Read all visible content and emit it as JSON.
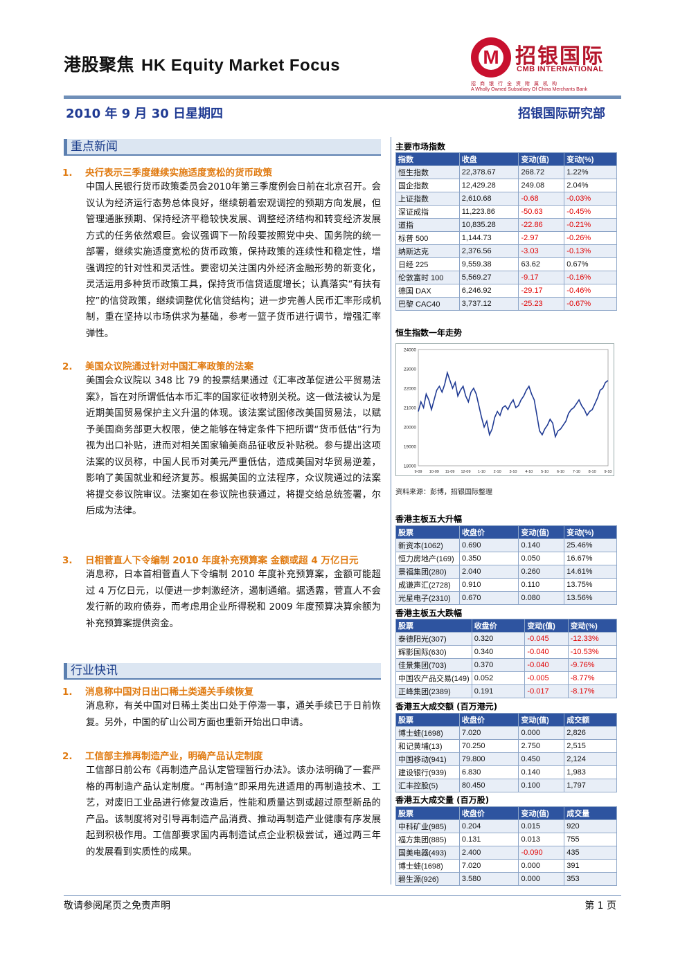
{
  "header": {
    "title_cn": "港股聚焦",
    "title_en": "HK Equity Market Focus",
    "date": "2010 年 9 月 30 日星期四",
    "dept": "招银国际研究部"
  },
  "logo": {
    "mark": "M",
    "cn": "招银国际",
    "en": "CMB INTERNATIONAL",
    "sub1": "招商银行全资附属机构",
    "sub2": "A Wholly Owned Subsidiary Of China Merchants Bank"
  },
  "sections": {
    "news_head": "重点新闻",
    "industry_head": "行业快讯"
  },
  "news": [
    {
      "num": "1.",
      "title": "央行表示三季度继续实施适度宽松的货币政策",
      "body": "中国人民银行货币政策委员会2010年第三季度例会日前在北京召开。会议认为经济运行态势总体良好，继续朝着宏观调控的预期方向发展，但管理通胀预期、保持经济平稳较快发展、调整经济结构和转变经济发展方式的任务依然艰巨。会议强调下一阶段要按照党中央、国务院的统一部署，继续实施适度宽松的货币政策，保持政策的连续性和稳定性，增强调控的针对性和灵活性。要密切关注国内外经济金融形势的新变化，灵活运用多种货币政策工具，保持货币信贷适度增长；认真落实“有扶有控”的信贷政策，继续调整优化信贷结构；进一步完善人民币汇率形成机制，重在坚持以市场供求为基础，参考一篮子货币进行调节，增强汇率弹性。"
    },
    {
      "num": "2.",
      "title": "美国众议院通过针对中国汇率政策的法案",
      "body": "美国会众议院以 348 比 79 的投票结果通过《汇率改革促进公平贸易法案》，旨在对所谓低估本币汇率的国家征收特别关税。这一做法被认为是近期美国贸易保护主义升温的体现。该法案试图修改美国贸易法，以赋予美国商务部更大权限，使之能够在特定条件下把所谓“货币低估”行为视为出口补贴，进而对相关国家输美商品征收反补贴税。参与提出这项法案的议员称，中国人民币对美元严重低估，造成美国对华贸易逆差，影响了美国就业和经济复苏。根据美国的立法程序，众议院通过的法案将提交参议院审议。法案如在参议院也获通过，将提交给总统签署，尔后成为法律。"
    },
    {
      "num": "3.",
      "title": "日相菅直人下令编制 2010 年度补充预算案  金额或超 4 万亿日元",
      "body": "消息称，日本首相菅直人下令编制 2010 年度补充预算案，金额可能超过 4 万亿日元，以便进一步刺激经济，遏制通缩。据透露，菅直人不会发行新的政府债券，而考虑用企业所得税和 2009 年度预算决算余额为补充预算案提供资金。"
    }
  ],
  "industry": [
    {
      "num": "1.",
      "title": "消息称中国对日出口稀土类通关手续恢复",
      "body": "消息称，有关中国对日稀土类出口处于停滞一事，通关手续已于日前恢复。另外，中国的矿山公司方面也重新开始出口申请。"
    },
    {
      "num": "2.",
      "title": "工信部主推再制造产业，明确产品认定制度",
      "body": "工信部日前公布《再制造产品认定管理暂行办法》。该办法明确了一套严格的再制造产品认定制度。“再制造”即采用先进适用的再制造技术、工艺，对废旧工业品进行修复改造后，性能和质量达到或超过原型新品的产品。该制度将对引导再制造产品消费、推动再制造产业健康有序发展起到积极作用。工信部要求国内再制造试点企业积极尝试，通过两三年的发展看到实质性的成果。"
    }
  ],
  "indices": {
    "label": "主要市场指数",
    "headers": [
      "指数",
      "收盘",
      "变动(值)",
      "变动(%)"
    ],
    "rows": [
      [
        "恒生指数",
        "22,378.67",
        "268.72",
        "1.22%"
      ],
      [
        "国企指数",
        "12,429.28",
        "249.08",
        "2.04%"
      ],
      [
        "上证指数",
        "2,610.68",
        "-0.68",
        "-0.03%"
      ],
      [
        "深证成指",
        "11,223.86",
        "-50.63",
        "-0.45%"
      ],
      [
        "道指",
        "10,835.28",
        "-22.86",
        "-0.21%"
      ],
      [
        "标普 500",
        "1,144.73",
        "-2.97",
        "-0.26%"
      ],
      [
        "纳斯达克",
        "2,376.56",
        "-3.03",
        "-0.13%"
      ],
      [
        "日经 225",
        "9,559.38",
        "63.62",
        "0.67%"
      ],
      [
        "伦敦富时 100",
        "5,569.27",
        "-9.17",
        "-0.16%"
      ],
      [
        "德国 DAX",
        "6,246.92",
        "-29.17",
        "-0.46%"
      ],
      [
        "巴黎 CAC40",
        "3,737.12",
        "-25.23",
        "-0.67%"
      ]
    ]
  },
  "chart_label": "恒生指数一年走势",
  "chart_source": "资料来源：彭博，招银国际整理",
  "chart_data": {
    "type": "line",
    "title": "",
    "xlabel": "",
    "ylabel": "",
    "ylim": [
      18000,
      24000
    ],
    "yticks": [
      18000,
      19000,
      20000,
      21000,
      22000,
      23000,
      24000
    ],
    "xticks": [
      "9-09",
      "10-09",
      "11-09",
      "12-09",
      "1-10",
      "2-10",
      "3-10",
      "4-10",
      "5-10",
      "6-10",
      "7-10",
      "8-10",
      "9-10"
    ],
    "series": [
      {
        "values": [
          20800,
          21300,
          21000,
          21700,
          21400,
          20900,
          21400,
          21900,
          22100,
          21800,
          22200,
          22800,
          22400,
          22000,
          22300,
          21600,
          21900,
          22100,
          21600,
          21300,
          21800,
          22000,
          21700,
          21100,
          20500,
          20000,
          20300,
          19600,
          19900,
          20500,
          20800,
          20600,
          21000,
          21100,
          20900,
          21200,
          21400,
          21000,
          21100,
          21400,
          21600,
          21900,
          22100,
          21700,
          21400,
          20600,
          19800,
          19600,
          19900,
          20100,
          20400,
          20200,
          19500,
          19800,
          19900,
          20100,
          20300,
          20700,
          20900,
          21000,
          21200,
          21400,
          21100,
          20900,
          20600,
          20800,
          20900,
          21200,
          21500,
          21900,
          22000,
          22300,
          22400
        ]
      }
    ]
  },
  "gainers": {
    "label": "香港主板五大升幅",
    "headers": [
      "股票",
      "收盘价",
      "变动(值)",
      "变动(%)"
    ],
    "rows": [
      [
        "新资本(1062)",
        "0.690",
        "0.140",
        "25.46%"
      ],
      [
        "恒力房地产(169)",
        "0.350",
        "0.050",
        "16.67%"
      ],
      [
        "景福集团(280)",
        "2.040",
        "0.260",
        "14.61%"
      ],
      [
        "成谦声汇(2728)",
        "0.910",
        "0.110",
        "13.75%"
      ],
      [
        "光星电子(2310)",
        "0.670",
        "0.080",
        "13.56%"
      ]
    ]
  },
  "losers": {
    "label": "香港主板五大跌幅",
    "headers": [
      "股票",
      "收盘价",
      "变动(值)",
      "变动(%)"
    ],
    "rows": [
      [
        "泰德阳光(307)",
        "0.320",
        "-0.045",
        "-12.33%"
      ],
      [
        "辉影国际(630)",
        "0.340",
        "-0.040",
        "-10.53%"
      ],
      [
        "佳景集团(703)",
        "0.370",
        "-0.040",
        "-9.76%"
      ],
      [
        "中国农产品交易(149)",
        "0.052",
        "-0.005",
        "-8.77%"
      ],
      [
        "正峰集团(2389)",
        "0.191",
        "-0.017",
        "-8.17%"
      ]
    ]
  },
  "turnover": {
    "label": "香港五大成交额 (百万港元)",
    "headers": [
      "股票",
      "收盘价",
      "变动(值)",
      "成交额"
    ],
    "rows": [
      [
        "博士蛙(1698)",
        "7.020",
        "0.000",
        "2,826"
      ],
      [
        "和记黄埔(13)",
        "70.250",
        "2.750",
        "2,515"
      ],
      [
        "中国移动(941)",
        "79.800",
        "0.450",
        "2,124"
      ],
      [
        "建设银行(939)",
        "6.830",
        "0.140",
        "1,983"
      ],
      [
        "汇丰控股(5)",
        "80.450",
        "0.100",
        "1,797"
      ]
    ]
  },
  "volume": {
    "label": "香港五大成交量 (百万股)",
    "headers": [
      "股票",
      "收盘价",
      "变动(值)",
      "成交量"
    ],
    "rows": [
      [
        "中科矿业(985)",
        "0.204",
        "0.015",
        "920"
      ],
      [
        "福方集团(885)",
        "0.131",
        "0.013",
        "755"
      ],
      [
        "国美电器(493)",
        "2.400",
        "-0.090",
        "435"
      ],
      [
        "博士蛙(1698)",
        "7.020",
        "0.000",
        "391"
      ],
      [
        "碧生源(926)",
        "3.580",
        "0.000",
        "353"
      ]
    ]
  },
  "footer": {
    "disclaimer": "敬请参阅尾页之免责声明",
    "page": "第 1 页"
  }
}
